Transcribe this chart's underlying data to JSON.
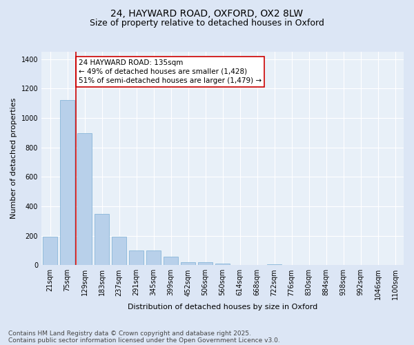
{
  "title_line1": "24, HAYWARD ROAD, OXFORD, OX2 8LW",
  "title_line2": "Size of property relative to detached houses in Oxford",
  "xlabel": "Distribution of detached houses by size in Oxford",
  "ylabel": "Number of detached properties",
  "categories": [
    "21sqm",
    "75sqm",
    "129sqm",
    "183sqm",
    "237sqm",
    "291sqm",
    "345sqm",
    "399sqm",
    "452sqm",
    "506sqm",
    "560sqm",
    "614sqm",
    "668sqm",
    "722sqm",
    "776sqm",
    "830sqm",
    "884sqm",
    "938sqm",
    "992sqm",
    "1046sqm",
    "1100sqm"
  ],
  "values": [
    195,
    1120,
    895,
    350,
    195,
    100,
    100,
    60,
    22,
    20,
    12,
    0,
    0,
    8,
    0,
    0,
    0,
    0,
    0,
    0,
    0
  ],
  "bar_color": "#b8d0ea",
  "bar_edge_color": "#7aadd4",
  "vline_color": "#cc0000",
  "vline_x_index": 2,
  "annotation_text": "24 HAYWARD ROAD: 135sqm\n← 49% of detached houses are smaller (1,428)\n51% of semi-detached houses are larger (1,479) →",
  "annotation_box_facecolor": "#ffffff",
  "annotation_box_edgecolor": "#cc0000",
  "ylim": [
    0,
    1450
  ],
  "yticks": [
    0,
    200,
    400,
    600,
    800,
    1000,
    1200,
    1400
  ],
  "bg_color": "#dce6f5",
  "plot_bg_color": "#e8f0f8",
  "footer_line1": "Contains HM Land Registry data © Crown copyright and database right 2025.",
  "footer_line2": "Contains public sector information licensed under the Open Government Licence v3.0.",
  "title_fontsize": 10,
  "subtitle_fontsize": 9,
  "axis_label_fontsize": 8,
  "tick_fontsize": 7,
  "annotation_fontsize": 7.5,
  "footer_fontsize": 6.5
}
